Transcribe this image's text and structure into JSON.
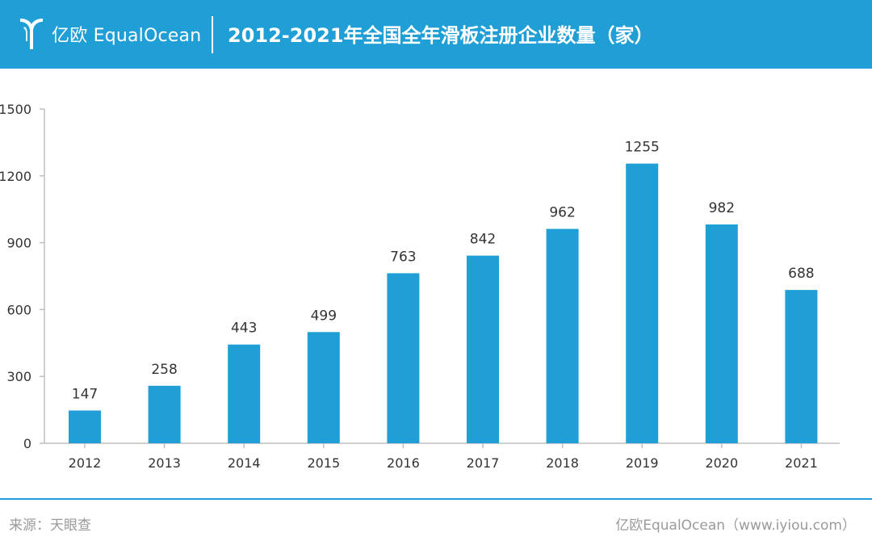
{
  "header": {
    "logo_text": "亿欧 EqualOcean",
    "title": "2012-2021年全国全年滑板注册企业数量（家）",
    "bg_color": "#1f9fd5"
  },
  "footer": {
    "source": "来源：天眼查",
    "credit": "亿欧EqualOcean（www.iyiou.com）"
  },
  "chart_data": {
    "type": "bar",
    "categories": [
      "2012",
      "2013",
      "2014",
      "2015",
      "2016",
      "2017",
      "2018",
      "2019",
      "2020",
      "2021"
    ],
    "values": [
      147,
      258,
      443,
      499,
      763,
      842,
      962,
      1255,
      982,
      688
    ],
    "ylim": [
      0,
      1500
    ],
    "yticks": [
      0,
      300,
      600,
      900,
      1200,
      1500
    ],
    "grid": false,
    "legend": "none",
    "bar_color": "#1f9fd5",
    "xlabel": "",
    "ylabel": ""
  }
}
